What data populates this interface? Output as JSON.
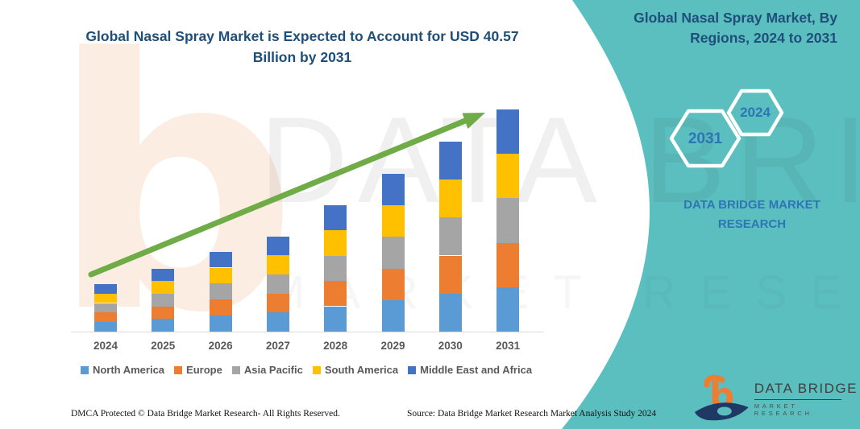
{
  "header": {
    "left_title_line1": "Global Nasal Spray Market is Expected to Account for USD 40.57",
    "left_title_line2": "Billion by 2031",
    "right_title_line1": "Global Nasal Spray Market, By",
    "right_title_line2": "Regions, 2024 to 2031"
  },
  "side_panel": {
    "hexagon_big_year": "2031",
    "hexagon_small_year": "2024",
    "brand_line1": "DATA BRIDGE MARKET",
    "brand_line2": "RESEARCH"
  },
  "chart_data": {
    "type": "bar",
    "stacked": true,
    "title": "Global Nasal Spray Market is Expected to Account for USD 40.57 Billion by 2031",
    "unit": "USD Billion",
    "categories": [
      "2024",
      "2025",
      "2026",
      "2027",
      "2028",
      "2029",
      "2030",
      "2031"
    ],
    "series": [
      {
        "name": "North America",
        "color": "#5B9BD5",
        "values": [
          1.74,
          2.3,
          2.92,
          3.48,
          4.62,
          5.76,
          6.94,
          8.11
        ]
      },
      {
        "name": "Europe",
        "color": "#ED7D31",
        "values": [
          1.74,
          2.3,
          2.92,
          3.48,
          4.62,
          5.76,
          6.94,
          8.11
        ]
      },
      {
        "name": "Asia Pacific",
        "color": "#A5A5A5",
        "values": [
          1.74,
          2.3,
          2.92,
          3.48,
          4.62,
          5.76,
          6.94,
          8.11
        ]
      },
      {
        "name": "South America",
        "color": "#FFC000",
        "values": [
          1.74,
          2.3,
          2.92,
          3.48,
          4.62,
          5.76,
          6.94,
          8.11
        ]
      },
      {
        "name": "Middle East and Africa",
        "color": "#4472C4",
        "values": [
          1.74,
          2.3,
          2.92,
          3.48,
          4.62,
          5.76,
          6.94,
          8.11
        ]
      }
    ],
    "totals_estimated": [
      8.7,
      11.5,
      14.6,
      17.4,
      23.1,
      28.8,
      34.7,
      40.57
    ],
    "final_value": 40.57,
    "ylim": [
      0,
      42
    ],
    "grid": false,
    "y_axis_visible": false,
    "legend_position": "bottom",
    "trend_arrow": {
      "present": true,
      "color": "#6FAC47"
    }
  },
  "colors": {
    "teal_panel": "#5BBFC0",
    "title_navy": "#1F4E79",
    "panel_blue_text": "#2E75B6",
    "axis_gray": "#D9D9D9"
  },
  "watermark": {
    "letter": "b",
    "text": "DATA BRIDGE",
    "subtext": "MARKET RESEARCH"
  },
  "logo": {
    "name": "DATA BRIDGE",
    "subname": "MARKET RESEARCH"
  },
  "footer": {
    "left": "DMCA Protected © Data Bridge Market Research-  All Rights Reserved.",
    "right": "Source: Data Bridge Market Research  Market Analysis Study 2024"
  }
}
